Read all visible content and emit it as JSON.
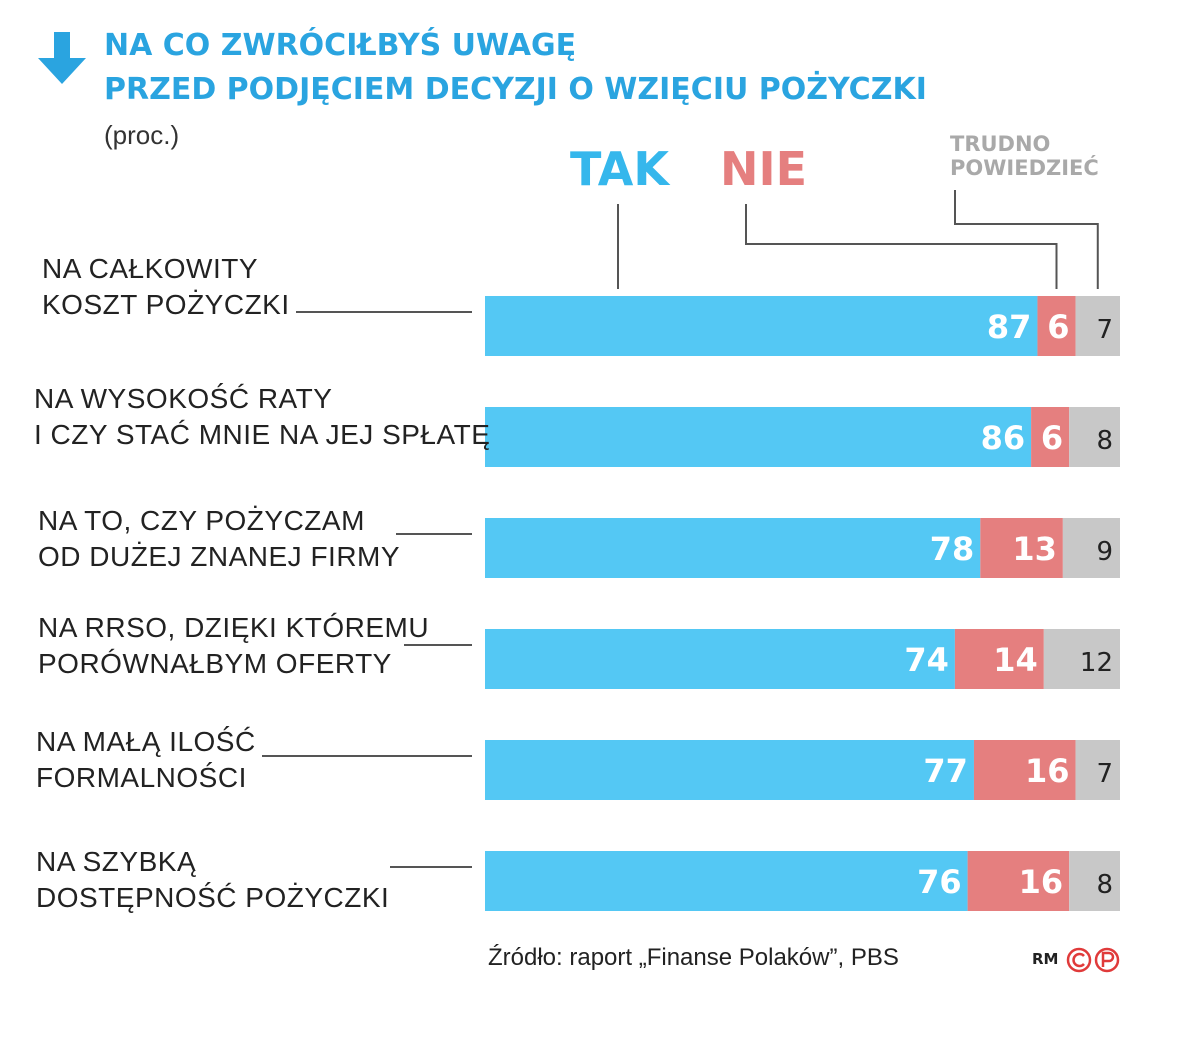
{
  "header": {
    "title_line1": "NA CO ZWRÓCIŁBYŚ UWAGĘ",
    "title_line2": "PRZED PODJĘCIEM DECYZJI O WZIĘCIU POŻYCZKI",
    "unit": "(proc.)",
    "icon": "arrow-down-icon"
  },
  "legend": {
    "tak": "TAK",
    "nie": "NIE",
    "trudno_line1": "TRUDNO",
    "trudno_line2": "POWIEDZIEĆ"
  },
  "colors": {
    "title": "#2aa4e0",
    "tak": "#54c8f4",
    "nie": "#e57f7f",
    "trudno": "#c8c8c8"
  },
  "chart_data": {
    "type": "bar",
    "stacked": true,
    "orientation": "horizontal",
    "categories": [
      [
        "NA CAŁKOWITY",
        "KOSZT POŻYCZKI"
      ],
      [
        "NA WYSOKOŚĆ RATY",
        "I CZY STAĆ MNIE NA JEJ SPŁATĘ"
      ],
      [
        "NA TO, CZY POŻYCZAM",
        "OD DUŻEJ ZNANEJ FIRMY"
      ],
      [
        "NA RRSO, DZIĘKI KTÓREMU",
        "PORÓWNAŁBYM OFERTY"
      ],
      [
        "NA MAŁĄ ILOŚĆ",
        "FORMALNOŚCI"
      ],
      [
        "NA SZYBKĄ",
        "DOSTĘPNOŚĆ POŻYCZKI"
      ]
    ],
    "series": [
      {
        "name": "TAK",
        "values": [
          87,
          86,
          78,
          74,
          77,
          76
        ]
      },
      {
        "name": "NIE",
        "values": [
          6,
          6,
          13,
          14,
          16,
          16
        ]
      },
      {
        "name": "TRUDNO POWIEDZIEĆ",
        "values": [
          7,
          8,
          9,
          12,
          7,
          8
        ]
      }
    ],
    "xlim": [
      0,
      100
    ],
    "unit": "(proc.)"
  },
  "footer": {
    "source": "Źródło: raport „Finanse Polaków”, PBS",
    "credit_rm": "RM",
    "credit_icons": [
      "copyright-icon",
      "p-icon"
    ]
  }
}
